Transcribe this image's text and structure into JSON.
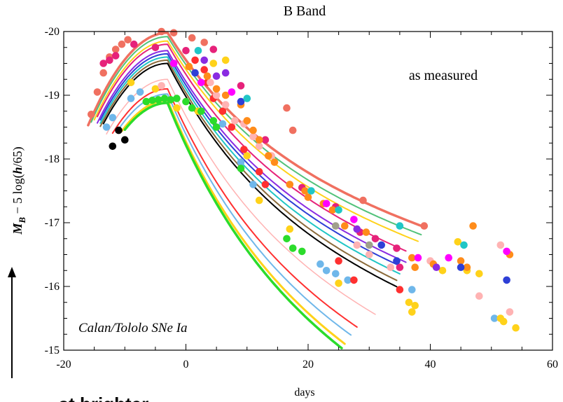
{
  "chart_data": {
    "type": "scatter",
    "title": "B Band",
    "xlabel": "days",
    "ylabel_main": "M",
    "ylabel_sub": "B",
    "ylabel_rest": " − 5 log(",
    "ylabel_h": "h",
    "ylabel_end": "/65)",
    "annotation_top": "as measured",
    "annotation_bottom": "Calan/Tololo SNe Ia",
    "footer_text": "...st brighter",
    "xlim": [
      -20,
      60
    ],
    "ylim": [
      -20,
      -15
    ],
    "y_inverted": true,
    "grid": false,
    "legend": "none",
    "x_ticks": [
      -20,
      0,
      20,
      40,
      60
    ],
    "x_tick_labels": [
      "-20",
      "0",
      "20",
      "40",
      "60"
    ],
    "y_ticks": [
      -20,
      -19,
      -18,
      -17,
      -16,
      -15
    ],
    "y_tick_labels": [
      "-20",
      "-19",
      "-18",
      "-17",
      "-16",
      "-15"
    ],
    "curves": [
      {
        "color": "#f07060",
        "peak": -19.98,
        "start": -16,
        "end": 39,
        "decline": 1.15,
        "width": 3.5
      },
      {
        "color": "#52c27a",
        "peak": -19.92,
        "start": -15.5,
        "end": 38.5,
        "decline": 1.18,
        "width": 2
      },
      {
        "color": "#ffd21a",
        "peak": -19.85,
        "start": -15,
        "end": 38,
        "decline": 1.2,
        "width": 2
      },
      {
        "color": "#e6227a",
        "peak": -19.8,
        "start": -14.5,
        "end": 36,
        "decline": 1.27,
        "width": 2
      },
      {
        "color": "#8a2be2",
        "peak": -19.7,
        "start": -14.5,
        "end": 36,
        "decline": 1.3,
        "width": 2
      },
      {
        "color": "#2e3fd6",
        "peak": -19.65,
        "start": -14,
        "end": 35.5,
        "decline": 1.32,
        "width": 2
      },
      {
        "color": "#20c6c6",
        "peak": -19.6,
        "start": -14,
        "end": 35,
        "decline": 1.35,
        "width": 2
      },
      {
        "color": "#8b6a3a",
        "peak": -19.55,
        "start": -14,
        "end": 34.5,
        "decline": 1.38,
        "width": 2
      },
      {
        "color": "#000000",
        "peak": -19.5,
        "start": -13.5,
        "end": 34.5,
        "decline": 1.4,
        "width": 2
      },
      {
        "color": "#ffb3b3",
        "peak": -19.25,
        "start": -13,
        "end": 31,
        "decline": 1.55,
        "width": 1.5
      },
      {
        "color": "#ff3030",
        "peak": -19.1,
        "start": -12,
        "end": 28,
        "decline": 1.65,
        "width": 2
      },
      {
        "color": "#6fb7ea",
        "peak": -19.02,
        "start": -11,
        "end": 27,
        "decline": 1.7,
        "width": 2
      },
      {
        "color": "#ffd21a",
        "peak": -18.92,
        "start": -10.5,
        "end": 26,
        "decline": 1.75,
        "width": 3
      },
      {
        "color": "#2bdc2b",
        "peak": -18.88,
        "start": -10,
        "end": 25.5,
        "decline": 1.78,
        "width": 3.5
      }
    ],
    "points": [
      {
        "x": -15.5,
        "y": -18.7,
        "color": "#f07060"
      },
      {
        "x": -14.5,
        "y": -19.05,
        "color": "#f07060"
      },
      {
        "x": -13.5,
        "y": -19.35,
        "color": "#f07060"
      },
      {
        "x": -12.5,
        "y": -19.6,
        "color": "#f07060"
      },
      {
        "x": -11.5,
        "y": -19.72,
        "color": "#f07060"
      },
      {
        "x": -10.5,
        "y": -19.8,
        "color": "#f07060"
      },
      {
        "x": -9.5,
        "y": -19.87,
        "color": "#f07060"
      },
      {
        "x": -4,
        "y": -20.0,
        "color": "#f07060"
      },
      {
        "x": -2,
        "y": -19.98,
        "color": "#f07060"
      },
      {
        "x": 1,
        "y": -19.9,
        "color": "#f07060"
      },
      {
        "x": 3,
        "y": -19.83,
        "color": "#f07060"
      },
      {
        "x": 16.5,
        "y": -18.8,
        "color": "#f07060"
      },
      {
        "x": 17.5,
        "y": -18.45,
        "color": "#f07060"
      },
      {
        "x": 29,
        "y": -17.35,
        "color": "#f07060"
      },
      {
        "x": 39,
        "y": -16.95,
        "color": "#f07060"
      },
      {
        "x": -13.5,
        "y": -19.5,
        "color": "#e6227a"
      },
      {
        "x": -12.5,
        "y": -19.55,
        "color": "#e6227a"
      },
      {
        "x": -11.5,
        "y": -19.62,
        "color": "#e6227a"
      },
      {
        "x": -8.5,
        "y": -19.8,
        "color": "#e6227a"
      },
      {
        "x": -5,
        "y": -19.75,
        "color": "#e6227a"
      },
      {
        "x": 0,
        "y": -19.7,
        "color": "#e6227a"
      },
      {
        "x": 4.5,
        "y": -19.72,
        "color": "#e6227a"
      },
      {
        "x": 9,
        "y": -19.15,
        "color": "#e6227a"
      },
      {
        "x": 13,
        "y": -18.3,
        "color": "#e6227a"
      },
      {
        "x": 19,
        "y": -17.55,
        "color": "#e6227a"
      },
      {
        "x": 24.5,
        "y": -17.25,
        "color": "#e6227a"
      },
      {
        "x": 28.5,
        "y": -16.85,
        "color": "#e6227a"
      },
      {
        "x": 31,
        "y": -16.75,
        "color": "#e6227a"
      },
      {
        "x": 34.5,
        "y": -16.6,
        "color": "#e6227a"
      },
      {
        "x": 35,
        "y": -16.3,
        "color": "#e6227a"
      },
      {
        "x": -13,
        "y": -18.5,
        "color": "#6fb7ea"
      },
      {
        "x": -12,
        "y": -18.65,
        "color": "#6fb7ea"
      },
      {
        "x": -9,
        "y": -18.95,
        "color": "#6fb7ea"
      },
      {
        "x": -7.5,
        "y": -19.05,
        "color": "#6fb7ea"
      },
      {
        "x": 6,
        "y": -18.55,
        "color": "#6fb7ea"
      },
      {
        "x": 9,
        "y": -17.95,
        "color": "#6fb7ea"
      },
      {
        "x": 11,
        "y": -17.6,
        "color": "#6fb7ea"
      },
      {
        "x": 22,
        "y": -16.35,
        "color": "#6fb7ea"
      },
      {
        "x": 23,
        "y": -16.25,
        "color": "#6fb7ea"
      },
      {
        "x": 24.5,
        "y": -16.2,
        "color": "#6fb7ea"
      },
      {
        "x": 26.5,
        "y": -16.1,
        "color": "#6fb7ea"
      },
      {
        "x": 37,
        "y": -15.95,
        "color": "#6fb7ea"
      },
      {
        "x": 50.5,
        "y": -15.5,
        "color": "#6fb7ea"
      },
      {
        "x": -11,
        "y": -18.45,
        "color": "#000000"
      },
      {
        "x": -12,
        "y": -18.2,
        "color": "#000000"
      },
      {
        "x": -10,
        "y": -18.3,
        "color": "#000000"
      },
      {
        "x": -9,
        "y": -19.2,
        "color": "#ffd21a"
      },
      {
        "x": -5,
        "y": -19.1,
        "color": "#ffd21a"
      },
      {
        "x": -1.5,
        "y": -18.8,
        "color": "#ffd21a"
      },
      {
        "x": 2,
        "y": -18.75,
        "color": "#ffd21a"
      },
      {
        "x": 4.5,
        "y": -19.5,
        "color": "#ffd21a"
      },
      {
        "x": 6.5,
        "y": -19.55,
        "color": "#ffd21a"
      },
      {
        "x": 10,
        "y": -18.05,
        "color": "#ffd21a"
      },
      {
        "x": 12,
        "y": -17.35,
        "color": "#ffd21a"
      },
      {
        "x": 17,
        "y": -16.9,
        "color": "#ffd21a"
      },
      {
        "x": 25,
        "y": -16.05,
        "color": "#ffd21a"
      },
      {
        "x": 36.5,
        "y": -15.75,
        "color": "#ffd21a"
      },
      {
        "x": 37.5,
        "y": -15.7,
        "color": "#ffd21a"
      },
      {
        "x": 37,
        "y": -15.6,
        "color": "#ffd21a"
      },
      {
        "x": 42,
        "y": -16.25,
        "color": "#ffd21a"
      },
      {
        "x": 44.5,
        "y": -16.7,
        "color": "#ffd21a"
      },
      {
        "x": 46,
        "y": -16.25,
        "color": "#ffd21a"
      },
      {
        "x": 48,
        "y": -16.2,
        "color": "#ffd21a"
      },
      {
        "x": 51.5,
        "y": -15.5,
        "color": "#ffd21a"
      },
      {
        "x": 52,
        "y": -15.45,
        "color": "#ffd21a"
      },
      {
        "x": 54,
        "y": -15.35,
        "color": "#ffd21a"
      },
      {
        "x": -6.5,
        "y": -18.9,
        "color": "#2bdc2b"
      },
      {
        "x": -5.5,
        "y": -18.92,
        "color": "#2bdc2b"
      },
      {
        "x": -4.5,
        "y": -18.93,
        "color": "#2bdc2b"
      },
      {
        "x": -3.5,
        "y": -18.95,
        "color": "#2bdc2b"
      },
      {
        "x": -2.5,
        "y": -18.93,
        "color": "#2bdc2b"
      },
      {
        "x": -1.5,
        "y": -18.95,
        "color": "#2bdc2b"
      },
      {
        "x": 0,
        "y": -18.9,
        "color": "#2bdc2b"
      },
      {
        "x": 1,
        "y": -18.8,
        "color": "#2bdc2b"
      },
      {
        "x": 2.5,
        "y": -18.75,
        "color": "#2bdc2b"
      },
      {
        "x": 4.5,
        "y": -18.6,
        "color": "#2bdc2b"
      },
      {
        "x": 5,
        "y": -18.5,
        "color": "#2bdc2b"
      },
      {
        "x": 9,
        "y": -17.85,
        "color": "#2bdc2b"
      },
      {
        "x": 16.5,
        "y": -16.75,
        "color": "#2bdc2b"
      },
      {
        "x": 17.5,
        "y": -16.6,
        "color": "#2bdc2b"
      },
      {
        "x": 19,
        "y": -16.55,
        "color": "#2bdc2b"
      },
      {
        "x": 1.5,
        "y": -19.55,
        "color": "#ff3030"
      },
      {
        "x": 3,
        "y": -19.4,
        "color": "#ff3030"
      },
      {
        "x": 3.5,
        "y": -19.2,
        "color": "#ff3030"
      },
      {
        "x": 4.5,
        "y": -18.95,
        "color": "#ff3030"
      },
      {
        "x": 6,
        "y": -18.75,
        "color": "#ff3030"
      },
      {
        "x": 7.5,
        "y": -18.5,
        "color": "#ff3030"
      },
      {
        "x": 9.5,
        "y": -18.15,
        "color": "#ff3030"
      },
      {
        "x": 12,
        "y": -17.8,
        "color": "#ff3030"
      },
      {
        "x": 13,
        "y": -17.6,
        "color": "#ff3030"
      },
      {
        "x": 25,
        "y": -16.4,
        "color": "#ff3030"
      },
      {
        "x": 27.5,
        "y": -16.1,
        "color": "#ff3030"
      },
      {
        "x": 35,
        "y": -15.95,
        "color": "#ff3030"
      },
      {
        "x": -4,
        "y": -19.15,
        "color": "#ffb3b3"
      },
      {
        "x": 4,
        "y": -19.2,
        "color": "#ffb3b3"
      },
      {
        "x": 5,
        "y": -19.0,
        "color": "#ffb3b3"
      },
      {
        "x": 6.5,
        "y": -18.85,
        "color": "#ffb3b3"
      },
      {
        "x": 8,
        "y": -18.6,
        "color": "#ffb3b3"
      },
      {
        "x": 9.5,
        "y": -18.55,
        "color": "#ffb3b3"
      },
      {
        "x": 11,
        "y": -18.35,
        "color": "#ffb3b3"
      },
      {
        "x": 12,
        "y": -18.2,
        "color": "#ffb3b3"
      },
      {
        "x": 14,
        "y": -18.05,
        "color": "#ffb3b3"
      },
      {
        "x": 28,
        "y": -16.65,
        "color": "#ffb3b3"
      },
      {
        "x": 30,
        "y": -16.5,
        "color": "#ffb3b3"
      },
      {
        "x": 33.5,
        "y": -16.3,
        "color": "#ffb3b3"
      },
      {
        "x": 40,
        "y": -16.4,
        "color": "#ffb3b3"
      },
      {
        "x": 48,
        "y": -15.85,
        "color": "#ffb3b3"
      },
      {
        "x": 51.5,
        "y": -16.65,
        "color": "#ffb3b3"
      },
      {
        "x": 53,
        "y": -15.6,
        "color": "#ffb3b3"
      },
      {
        "x": 0.5,
        "y": -19.45,
        "color": "#ff8c1a"
      },
      {
        "x": 3.5,
        "y": -19.3,
        "color": "#ff8c1a"
      },
      {
        "x": 5,
        "y": -19.1,
        "color": "#ff8c1a"
      },
      {
        "x": 6.5,
        "y": -19.0,
        "color": "#ff8c1a"
      },
      {
        "x": 9,
        "y": -18.85,
        "color": "#ff8c1a"
      },
      {
        "x": 10,
        "y": -18.6,
        "color": "#ff8c1a"
      },
      {
        "x": 11,
        "y": -18.45,
        "color": "#ff8c1a"
      },
      {
        "x": 12,
        "y": -18.3,
        "color": "#ff8c1a"
      },
      {
        "x": 13.5,
        "y": -18.05,
        "color": "#ff8c1a"
      },
      {
        "x": 14.5,
        "y": -17.95,
        "color": "#ff8c1a"
      },
      {
        "x": 17,
        "y": -17.6,
        "color": "#ff8c1a"
      },
      {
        "x": 19.5,
        "y": -17.5,
        "color": "#ff8c1a"
      },
      {
        "x": 20,
        "y": -17.4,
        "color": "#ff8c1a"
      },
      {
        "x": 22.5,
        "y": -17.3,
        "color": "#ff8c1a"
      },
      {
        "x": 24,
        "y": -17.2,
        "color": "#ff8c1a"
      },
      {
        "x": 26,
        "y": -16.95,
        "color": "#ff8c1a"
      },
      {
        "x": 29.5,
        "y": -16.85,
        "color": "#ff8c1a"
      },
      {
        "x": 37,
        "y": -16.45,
        "color": "#ff8c1a"
      },
      {
        "x": 37.5,
        "y": -16.3,
        "color": "#ff8c1a"
      },
      {
        "x": 40.5,
        "y": -16.35,
        "color": "#ff8c1a"
      },
      {
        "x": 45,
        "y": -16.4,
        "color": "#ff8c1a"
      },
      {
        "x": 46,
        "y": -16.3,
        "color": "#ff8c1a"
      },
      {
        "x": 47,
        "y": -16.95,
        "color": "#ff8c1a"
      },
      {
        "x": 53,
        "y": -16.5,
        "color": "#ff8c1a"
      },
      {
        "x": -2,
        "y": -19.5,
        "color": "#a0a08c"
      },
      {
        "x": 24.5,
        "y": -16.95,
        "color": "#a0a08c"
      },
      {
        "x": 30,
        "y": -16.65,
        "color": "#a0a08c"
      },
      {
        "x": 3,
        "y": -19.55,
        "color": "#8a2be2"
      },
      {
        "x": 5,
        "y": -19.3,
        "color": "#8a2be2"
      },
      {
        "x": 6.5,
        "y": -19.35,
        "color": "#8a2be2"
      },
      {
        "x": 28,
        "y": -16.9,
        "color": "#8a2be2"
      },
      {
        "x": 41,
        "y": -16.3,
        "color": "#8a2be2"
      },
      {
        "x": 1.5,
        "y": -19.35,
        "color": "#2e3fd6"
      },
      {
        "x": 9,
        "y": -18.9,
        "color": "#2e3fd6"
      },
      {
        "x": 32,
        "y": -16.65,
        "color": "#2e3fd6"
      },
      {
        "x": 34.5,
        "y": -16.4,
        "color": "#2e3fd6"
      },
      {
        "x": 45,
        "y": -16.3,
        "color": "#2e3fd6"
      },
      {
        "x": 52.5,
        "y": -16.1,
        "color": "#2e3fd6"
      },
      {
        "x": 2,
        "y": -19.7,
        "color": "#20c6c6"
      },
      {
        "x": 10,
        "y": -18.95,
        "color": "#20c6c6"
      },
      {
        "x": 20.5,
        "y": -17.5,
        "color": "#20c6c6"
      },
      {
        "x": 25,
        "y": -17.2,
        "color": "#20c6c6"
      },
      {
        "x": 35,
        "y": -16.95,
        "color": "#20c6c6"
      },
      {
        "x": 45.5,
        "y": -16.65,
        "color": "#20c6c6"
      },
      {
        "x": -2,
        "y": -19.5,
        "color": "#ff00ff"
      },
      {
        "x": 2.5,
        "y": -19.2,
        "color": "#ff00ff"
      },
      {
        "x": 7.5,
        "y": -19.05,
        "color": "#ff00ff"
      },
      {
        "x": 23,
        "y": -17.3,
        "color": "#ff00ff"
      },
      {
        "x": 27.5,
        "y": -17.05,
        "color": "#ff00ff"
      },
      {
        "x": 38,
        "y": -16.45,
        "color": "#ff00ff"
      },
      {
        "x": 43,
        "y": -16.45,
        "color": "#ff00ff"
      },
      {
        "x": 52.5,
        "y": -16.55,
        "color": "#ff00ff"
      }
    ]
  }
}
